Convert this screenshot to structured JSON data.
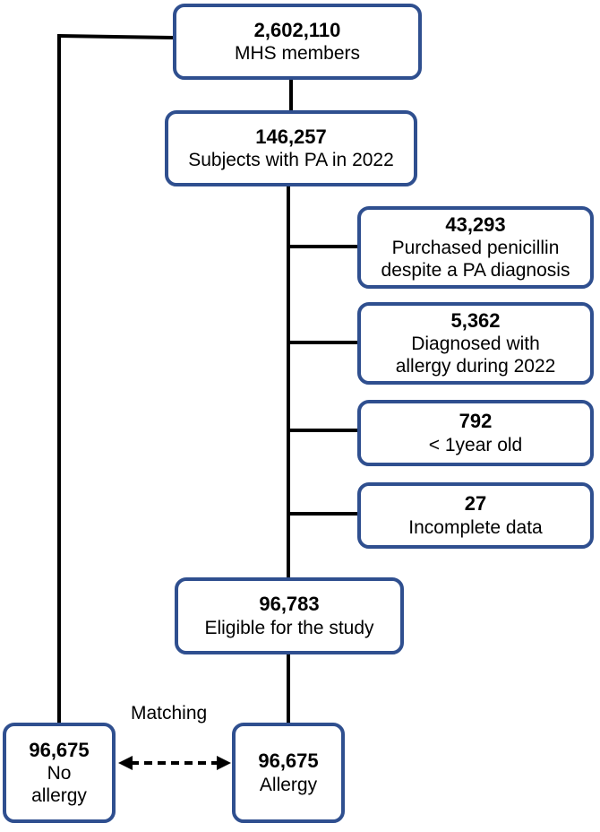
{
  "colors": {
    "box_border": "#2f4f8f",
    "connector": "#000000"
  },
  "boxes": {
    "members": {
      "count": "2,602,110",
      "label": "MHS members"
    },
    "pa_2022": {
      "count": "146,257",
      "label": "Subjects with PA in 2022"
    },
    "excl_penicillin": {
      "count": "43,293",
      "label": "Purchased penicillin\ndespite a PA diagnosis"
    },
    "excl_allergy": {
      "count": "5,362",
      "label": "Diagnosed with\nallergy during 2022"
    },
    "excl_age": {
      "count": "792",
      "label": "< 1year old"
    },
    "excl_incomplete": {
      "count": "27",
      "label": "Incomplete data"
    },
    "eligible": {
      "count": "96,783",
      "label": "Eligible for the study"
    },
    "no_allergy": {
      "count": "96,675",
      "label": "No\nallergy"
    },
    "allergy": {
      "count": "96,675",
      "label": "Allergy"
    }
  },
  "matching_label": "Matching"
}
